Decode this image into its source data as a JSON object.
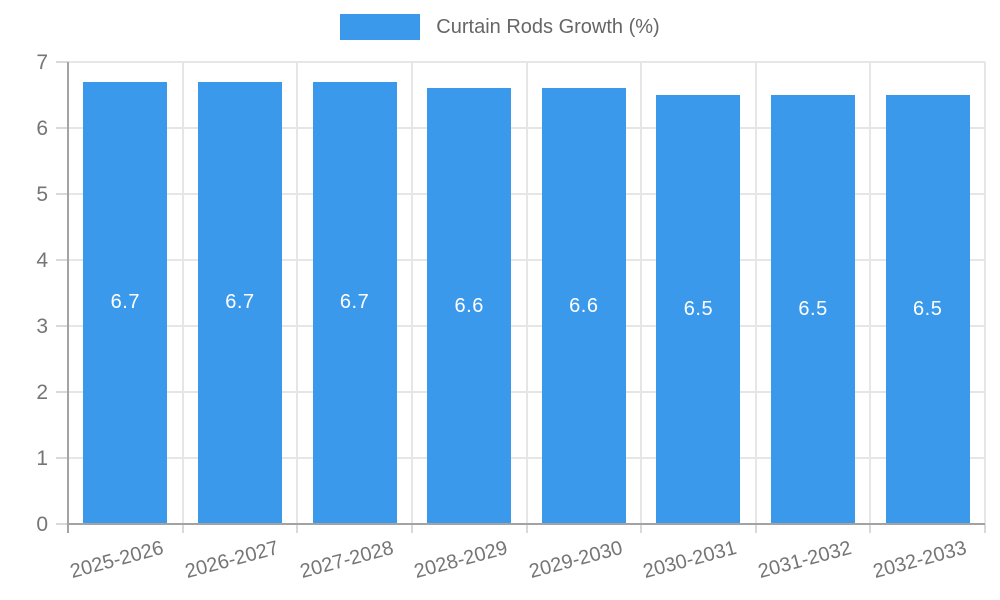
{
  "legend": {
    "label": "Curtain Rods Growth (%)"
  },
  "chart_data": {
    "type": "bar",
    "title": "Curtain Rods Growth (%)",
    "categories": [
      "2025-2026",
      "2026-2027",
      "2027-2028",
      "2028-2029",
      "2029-2030",
      "2030-2031",
      "2031-2032",
      "2032-2033"
    ],
    "series": [
      {
        "name": "Curtain Rods Growth (%)",
        "values": [
          6.7,
          6.7,
          6.7,
          6.6,
          6.6,
          6.5,
          6.5,
          6.5
        ]
      }
    ],
    "data_labels": [
      "6.7",
      "6.7",
      "6.7",
      "6.6",
      "6.6",
      "6.5",
      "6.5",
      "6.5"
    ],
    "xlabel": "",
    "ylabel": "",
    "ylim": [
      0,
      7
    ],
    "yticks": [
      0,
      1,
      2,
      3,
      4,
      5,
      6,
      7
    ],
    "grid": true,
    "legend_position": "top",
    "colors": {
      "bar": "#3b99eb",
      "bar_label": "#ffffff",
      "axis": "#a3a3a3",
      "gridline": "#e6e6e6",
      "tick": "#d9d9d9",
      "tick_label": "#757575",
      "legend_text": "#666666"
    }
  }
}
